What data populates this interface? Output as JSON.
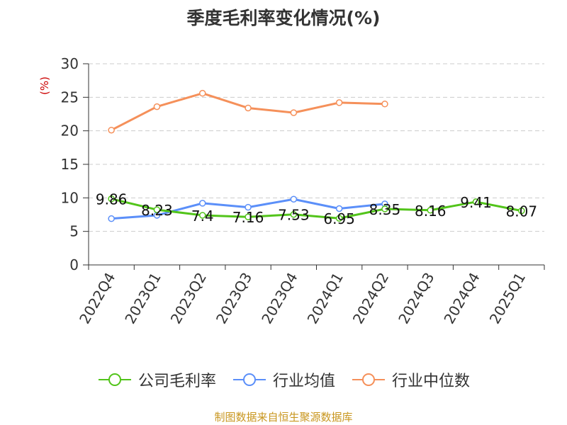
{
  "chart_data": {
    "type": "line",
    "title": "季度毛利率变化情况(%)",
    "ylabel": "(%)",
    "xlabel": "",
    "categories": [
      "2022Q4",
      "2023Q1",
      "2023Q2",
      "2023Q3",
      "2023Q4",
      "2024Q1",
      "2024Q2",
      "2024Q3",
      "2024Q4",
      "2025Q1"
    ],
    "ylim": [
      0,
      30
    ],
    "yticks": [
      0,
      5,
      10,
      15,
      20,
      25,
      30
    ],
    "grid": true,
    "legend_position": "bottom",
    "series": [
      {
        "name": "公司毛利率",
        "color": "#52c41a",
        "values": [
          9.86,
          8.23,
          7.4,
          7.16,
          7.53,
          6.95,
          8.35,
          8.16,
          9.41,
          8.07
        ],
        "labels": [
          "9.86",
          "8.23",
          "7.4",
          "7.16",
          "7.53",
          "6.95",
          "8.35",
          "8.16",
          "9.41",
          "8.07"
        ]
      },
      {
        "name": "行业均值",
        "color": "#5b8ff9",
        "values": [
          6.9,
          7.4,
          9.2,
          8.6,
          9.8,
          8.4,
          9.1,
          null,
          null,
          null
        ]
      },
      {
        "name": "行业中位数",
        "color": "#f5905a",
        "values": [
          20.1,
          23.6,
          25.6,
          23.4,
          22.7,
          24.2,
          24.0,
          null,
          null,
          null
        ]
      }
    ]
  },
  "source_text": "制图数据来自恒生聚源数据库"
}
